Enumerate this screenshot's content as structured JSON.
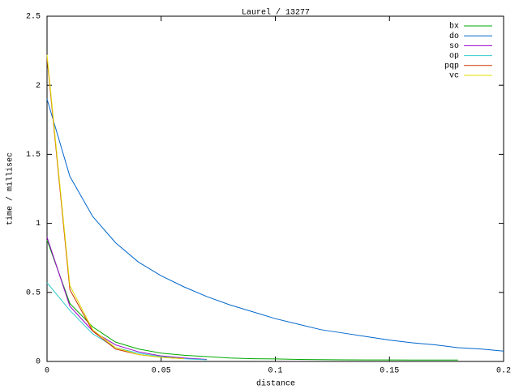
{
  "chart_data": {
    "type": "line",
    "title": "Laurel / 13277",
    "xlabel": "distance",
    "ylabel": "time / millisec",
    "x": [
      0,
      0.01,
      0.02,
      0.03,
      0.04,
      0.05,
      0.06,
      0.07,
      0.08,
      0.09,
      0.1,
      0.11,
      0.12,
      0.13,
      0.14,
      0.15,
      0.16,
      0.17,
      0.18,
      0.19,
      0.2
    ],
    "series": [
      {
        "name": "bx",
        "color": "#00aa00",
        "values": [
          0.88,
          0.42,
          0.25,
          0.14,
          0.09,
          0.06,
          0.045,
          0.035,
          0.025,
          0.02,
          0.018,
          0.015,
          0.013,
          0.012,
          0.011,
          0.011,
          0.01,
          0.01,
          0.01,
          null,
          null
        ]
      },
      {
        "name": "do",
        "color": "#0066cc",
        "values": [
          1.9,
          1.34,
          1.05,
          0.86,
          0.72,
          0.62,
          0.54,
          0.47,
          0.41,
          0.36,
          0.31,
          0.27,
          0.23,
          0.205,
          0.18,
          0.155,
          0.135,
          0.12,
          0.1,
          0.09,
          0.075
        ]
      },
      {
        "name": "so",
        "color": "#9900cc",
        "values": [
          0.9,
          0.4,
          0.22,
          0.12,
          0.07,
          0.04,
          0.025,
          0.015,
          null,
          null,
          null,
          null,
          null,
          null,
          null,
          null,
          null,
          null,
          null,
          null,
          null
        ]
      },
      {
        "name": "op",
        "color": "#33cccc",
        "values": [
          0.57,
          0.37,
          0.2,
          0.1,
          0.06,
          0.035,
          0.02,
          0.012,
          null,
          null,
          null,
          null,
          null,
          null,
          null,
          null,
          null,
          null,
          null,
          null,
          null
        ]
      },
      {
        "name": "pqp",
        "color": "#cc3300",
        "values": [
          2.2,
          0.52,
          0.22,
          0.09,
          0.05,
          0.03,
          0.02,
          null,
          null,
          null,
          null,
          null,
          null,
          null,
          null,
          null,
          null,
          null,
          null,
          null,
          null
        ]
      },
      {
        "name": "vc",
        "color": "#dddd00",
        "values": [
          2.22,
          0.55,
          0.23,
          0.1,
          0.05,
          0.03,
          0.02,
          null,
          null,
          null,
          null,
          null,
          null,
          null,
          null,
          null,
          null,
          null,
          null,
          null,
          null
        ]
      }
    ],
    "xlim": [
      0,
      0.2
    ],
    "ylim": [
      0,
      2.5
    ],
    "xticks": [
      0,
      0.05,
      0.1,
      0.15,
      0.2
    ],
    "yticks": [
      0,
      0.5,
      1,
      1.5,
      2,
      2.5
    ],
    "legend": "top-right"
  }
}
